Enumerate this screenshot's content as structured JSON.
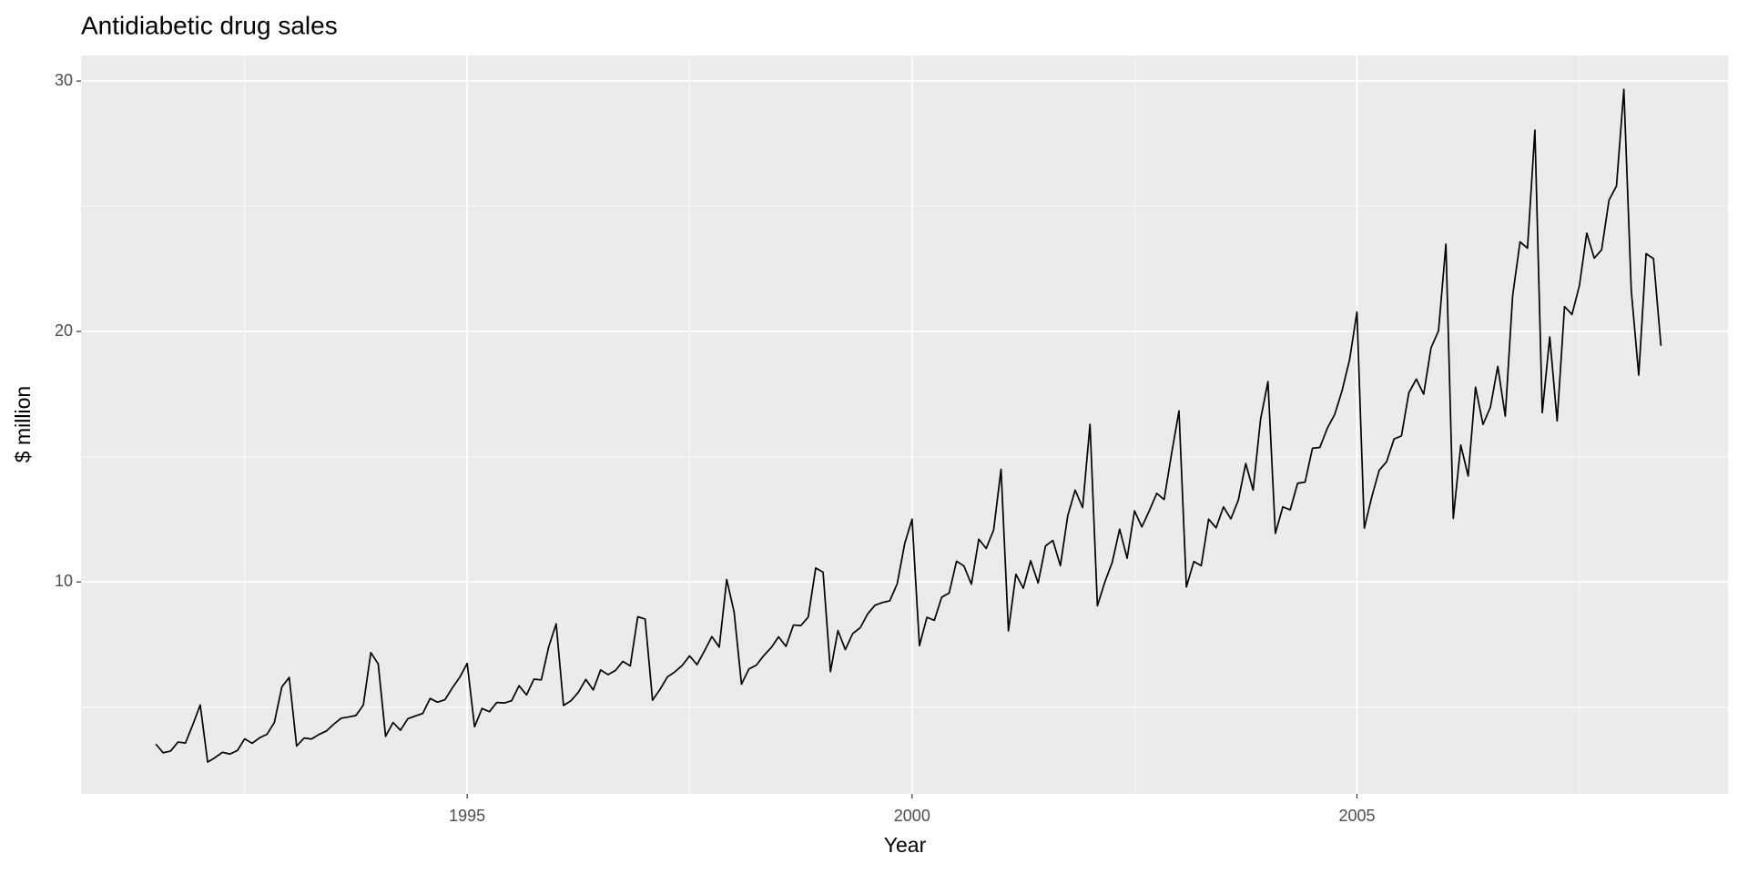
{
  "chart_data": {
    "type": "line",
    "title": "Antidiabetic drug sales",
    "x_label": "Year",
    "y_label": "$ million",
    "x": [
      1991.5,
      1991.583,
      1991.667,
      1991.75,
      1991.833,
      1991.917,
      1992,
      1992.083,
      1992.167,
      1992.25,
      1992.333,
      1992.417,
      1992.5,
      1992.583,
      1992.667,
      1992.75,
      1992.833,
      1992.917,
      1993,
      1993.083,
      1993.167,
      1993.25,
      1993.333,
      1993.417,
      1993.5,
      1993.583,
      1993.667,
      1993.75,
      1993.833,
      1993.917,
      1994,
      1994.083,
      1994.167,
      1994.25,
      1994.333,
      1994.417,
      1994.5,
      1994.583,
      1994.667,
      1994.75,
      1994.833,
      1994.917,
      1995,
      1995.083,
      1995.167,
      1995.25,
      1995.333,
      1995.417,
      1995.5,
      1995.583,
      1995.667,
      1995.75,
      1995.833,
      1995.917,
      1996,
      1996.083,
      1996.167,
      1996.25,
      1996.333,
      1996.417,
      1996.5,
      1996.583,
      1996.667,
      1996.75,
      1996.833,
      1996.917,
      1997,
      1997.083,
      1997.167,
      1997.25,
      1997.333,
      1997.417,
      1997.5,
      1997.583,
      1997.667,
      1997.75,
      1997.833,
      1997.917,
      1998,
      1998.083,
      1998.167,
      1998.25,
      1998.333,
      1998.417,
      1998.5,
      1998.583,
      1998.667,
      1998.75,
      1998.833,
      1998.917,
      1999,
      1999.083,
      1999.167,
      1999.25,
      1999.333,
      1999.417,
      1999.5,
      1999.583,
      1999.667,
      1999.75,
      1999.833,
      1999.917,
      2000,
      2000.083,
      2000.167,
      2000.25,
      2000.333,
      2000.417,
      2000.5,
      2000.583,
      2000.667,
      2000.75,
      2000.833,
      2000.917,
      2001,
      2001.083,
      2001.167,
      2001.25,
      2001.333,
      2001.417,
      2001.5,
      2001.583,
      2001.667,
      2001.75,
      2001.833,
      2001.917,
      2002,
      2002.083,
      2002.167,
      2002.25,
      2002.333,
      2002.417,
      2002.5,
      2002.583,
      2002.667,
      2002.75,
      2002.833,
      2002.917,
      2003,
      2003.083,
      2003.167,
      2003.25,
      2003.333,
      2003.417,
      2003.5,
      2003.583,
      2003.667,
      2003.75,
      2003.833,
      2003.917,
      2004,
      2004.083,
      2004.167,
      2004.25,
      2004.333,
      2004.417,
      2004.5,
      2004.583,
      2004.667,
      2004.75,
      2004.833,
      2004.917,
      2005,
      2005.083,
      2005.167,
      2005.25,
      2005.333,
      2005.417,
      2005.5,
      2005.583,
      2005.667,
      2005.75,
      2005.833,
      2005.917,
      2006,
      2006.083,
      2006.167,
      2006.25,
      2006.333,
      2006.417,
      2006.5,
      2006.583,
      2006.667,
      2006.75,
      2006.833,
      2006.917,
      2007,
      2007.083,
      2007.167,
      2007.25,
      2007.333,
      2007.417,
      2007.5,
      2007.583,
      2007.667,
      2007.75,
      2007.833,
      2007.917,
      2008,
      2008.083,
      2008.167,
      2008.25,
      2008.333,
      2008.417
    ],
    "values": [
      3.53,
      3.18,
      3.25,
      3.61,
      3.57,
      4.31,
      5.09,
      2.81,
      2.99,
      3.2,
      3.13,
      3.27,
      3.74,
      3.56,
      3.78,
      3.92,
      4.39,
      5.81,
      6.19,
      3.45,
      3.77,
      3.73,
      3.91,
      4.05,
      4.32,
      4.56,
      4.61,
      4.67,
      5.09,
      7.18,
      6.73,
      3.84,
      4.39,
      4.08,
      4.54,
      4.65,
      4.75,
      5.35,
      5.2,
      5.3,
      5.77,
      6.2,
      6.75,
      4.22,
      4.95,
      4.82,
      5.19,
      5.17,
      5.26,
      5.86,
      5.49,
      6.12,
      6.09,
      7.42,
      8.33,
      5.07,
      5.26,
      5.6,
      6.11,
      5.69,
      6.49,
      6.3,
      6.47,
      6.83,
      6.65,
      8.61,
      8.52,
      5.28,
      5.71,
      6.21,
      6.41,
      6.67,
      7.05,
      6.7,
      7.25,
      7.82,
      7.4,
      10.1,
      8.8,
      5.92,
      6.53,
      6.68,
      7.06,
      7.38,
      7.81,
      7.43,
      8.28,
      8.26,
      8.6,
      10.56,
      10.39,
      6.42,
      8.06,
      7.3,
      7.94,
      8.17,
      8.72,
      9.07,
      9.18,
      9.25,
      9.93,
      11.53,
      12.51,
      7.46,
      8.59,
      8.47,
      9.39,
      9.56,
      10.83,
      10.64,
      9.91,
      11.71,
      11.34,
      12.08,
      14.5,
      8.05,
      10.31,
      9.75,
      10.85,
      9.96,
      11.44,
      11.66,
      10.65,
      12.65,
      13.67,
      12.97,
      16.3,
      9.05,
      10.0,
      10.79,
      12.11,
      10.95,
      12.84,
      12.2,
      12.85,
      13.54,
      13.29,
      15.13,
      16.83,
      9.8,
      10.82,
      10.65,
      12.51,
      12.16,
      13.0,
      12.52,
      13.27,
      14.73,
      13.67,
      16.5,
      18.0,
      11.94,
      13.0,
      12.88,
      13.94,
      13.99,
      15.34,
      15.37,
      16.14,
      16.69,
      17.64,
      18.87,
      20.78,
      12.15,
      13.4,
      14.46,
      14.8,
      15.71,
      15.83,
      17.55,
      18.1,
      17.5,
      19.35,
      20.03,
      23.49,
      12.54,
      15.47,
      14.23,
      17.78,
      16.29,
      16.98,
      18.61,
      16.62,
      21.43,
      23.58,
      23.33,
      28.04,
      16.76,
      19.79,
      16.43,
      21.0,
      20.68,
      21.83,
      23.93,
      22.93,
      23.26,
      25.25,
      25.81,
      29.67,
      21.65,
      18.26,
      23.11,
      22.91,
      19.43
    ],
    "color": "#000000",
    "xlim": [
      1990.66,
      2009.17
    ],
    "xticks": [
      1995,
      2000,
      2005
    ],
    "ylim": [
      1.54,
      31.02
    ],
    "yticks": [
      10,
      20,
      30
    ],
    "grid": true
  }
}
